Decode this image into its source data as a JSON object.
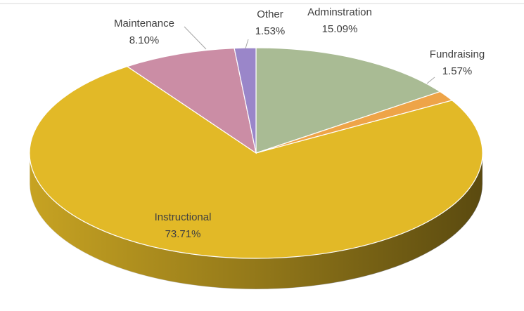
{
  "chart_data": {
    "type": "pie",
    "categories": [
      "Adminstration",
      "Fundraising",
      "Instructional",
      "Maintenance",
      "Other"
    ],
    "values": [
      15.09,
      1.57,
      73.71,
      8.1,
      1.53
    ],
    "value_labels": [
      "15.09%",
      "1.57%",
      "73.71%",
      "8.10%",
      "1.53%"
    ],
    "colors": [
      "#a9bb94",
      "#eea448",
      "#e2b927",
      "#cb8da5",
      "#9a86c9"
    ]
  }
}
